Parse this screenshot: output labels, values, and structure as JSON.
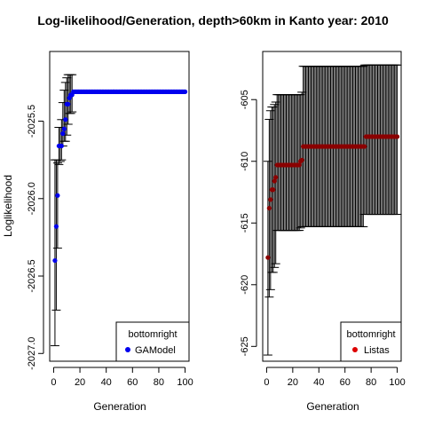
{
  "title": "Log-likelihood/Generation, depth>60km in Kanto year: 2010",
  "chart_data": [
    {
      "type": "scatter",
      "xlabel": "Generation",
      "ylabel": "Loglikelihood",
      "xlim": [
        -3,
        103
      ],
      "ylim": [
        -2027.05,
        -2025.05
      ],
      "xticks": [
        0,
        20,
        40,
        60,
        80,
        100
      ],
      "yticks": [
        -2027.0,
        -2026.5,
        -2026.0,
        -2025.5
      ],
      "ytick_labels": [
        "-2027.0",
        "-2026.5",
        "-2026.0",
        "-2025.5"
      ],
      "grid": false,
      "legend": {
        "title": "bottomright",
        "position": "bottom-right",
        "entries": [
          {
            "label": "GAModel",
            "color": "#0000ee"
          }
        ]
      },
      "series": [
        {
          "color": "#0000ee",
          "x": [
            1,
            2,
            3,
            4,
            5,
            6,
            7,
            8,
            9,
            10,
            11,
            12,
            13,
            14,
            15,
            16,
            17,
            18,
            19,
            20,
            21,
            22,
            23,
            24,
            25,
            26,
            27,
            28,
            29,
            30,
            31,
            32,
            33,
            34,
            35,
            36,
            37,
            38,
            39,
            40,
            41,
            42,
            43,
            44,
            45,
            46,
            47,
            48,
            49,
            50,
            51,
            52,
            53,
            54,
            55,
            56,
            57,
            58,
            59,
            60,
            61,
            62,
            63,
            64,
            65,
            66,
            67,
            68,
            69,
            70,
            71,
            72,
            73,
            74,
            75,
            76,
            77,
            78,
            79,
            80,
            81,
            82,
            83,
            84,
            85,
            86,
            87,
            88,
            89,
            90,
            91,
            92,
            93,
            94,
            95,
            96,
            97,
            98,
            99,
            100
          ],
          "y": [
            -2026.4,
            -2026.18,
            -2025.98,
            -2025.66,
            -2025.66,
            -2025.66,
            -2025.58,
            -2025.55,
            -2025.49,
            -2025.39,
            -2025.39,
            -2025.35,
            -2025.33,
            -2025.33,
            -2025.31,
            -2025.31,
            -2025.31,
            -2025.31,
            -2025.31,
            -2025.31,
            -2025.31,
            -2025.31,
            -2025.31,
            -2025.31,
            -2025.31,
            -2025.31,
            -2025.31,
            -2025.31,
            -2025.31,
            -2025.31,
            -2025.31,
            -2025.31,
            -2025.31,
            -2025.31,
            -2025.31,
            -2025.31,
            -2025.31,
            -2025.31,
            -2025.31,
            -2025.31,
            -2025.31,
            -2025.31,
            -2025.31,
            -2025.31,
            -2025.31,
            -2025.31,
            -2025.31,
            -2025.31,
            -2025.31,
            -2025.31,
            -2025.31,
            -2025.31,
            -2025.31,
            -2025.31,
            -2025.31,
            -2025.31,
            -2025.31,
            -2025.31,
            -2025.31,
            -2025.31,
            -2025.31,
            -2025.31,
            -2025.31,
            -2025.31,
            -2025.31,
            -2025.31,
            -2025.31,
            -2025.31,
            -2025.31,
            -2025.31,
            -2025.31,
            -2025.31,
            -2025.31,
            -2025.31,
            -2025.31,
            -2025.31,
            -2025.31,
            -2025.31,
            -2025.31,
            -2025.31,
            -2025.31,
            -2025.31,
            -2025.31,
            -2025.31,
            -2025.31,
            -2025.31,
            -2025.31,
            -2025.31,
            -2025.31,
            -2025.31,
            -2025.31,
            -2025.31,
            -2025.31,
            -2025.31,
            -2025.31,
            -2025.31,
            -2025.31,
            -2025.31,
            -2025.31,
            -2025.31
          ]
        }
      ],
      "errorbars": [
        {
          "x": 1,
          "lo": -2026.95,
          "hi": -2025.75
        },
        {
          "x": 2,
          "lo": -2026.72,
          "hi": -2025.75
        },
        {
          "x": 3,
          "lo": -2026.32,
          "hi": -2025.77
        },
        {
          "x": 4,
          "lo": -2025.78,
          "hi": -2025.54
        },
        {
          "x": 5,
          "lo": -2025.76,
          "hi": -2025.54
        },
        {
          "x": 6,
          "lo": -2025.75,
          "hi": -2025.49
        },
        {
          "x": 7,
          "lo": -2025.66,
          "hi": -2025.38
        },
        {
          "x": 8,
          "lo": -2025.63,
          "hi": -2025.3
        },
        {
          "x": 9,
          "lo": -2025.63,
          "hi": -2025.25
        },
        {
          "x": 10,
          "lo": -2025.59,
          "hi": -2025.22
        },
        {
          "x": 11,
          "lo": -2025.52,
          "hi": -2025.2
        },
        {
          "x": 12,
          "lo": -2025.45,
          "hi": -2025.2
        },
        {
          "x": 13,
          "lo": -2025.45,
          "hi": -2025.2
        },
        {
          "x": 14,
          "lo": -2025.44,
          "hi": -2025.2
        }
      ]
    },
    {
      "type": "scatter",
      "xlabel": "Generation",
      "ylabel": "",
      "xlim": [
        -3,
        103
      ],
      "ylim": [
        -626.2,
        -601.1
      ],
      "xticks": [
        0,
        20,
        40,
        60,
        80,
        100
      ],
      "yticks": [
        -625,
        -620,
        -615,
        -610,
        -605
      ],
      "ytick_labels": [
        "-625",
        "-620",
        "-615",
        "-610",
        "-605"
      ],
      "grid": false,
      "legend": {
        "title": "bottomright",
        "position": "bottom-right",
        "entries": [
          {
            "label": "Listas",
            "color": "#dd0000"
          }
        ]
      },
      "series": [
        {
          "color": "#8b0000",
          "x": [
            1,
            2,
            3,
            4,
            5,
            6,
            7,
            8,
            9,
            10,
            11,
            12,
            13,
            14,
            15,
            16,
            17,
            18,
            19,
            20,
            21,
            22,
            23,
            24,
            25,
            26,
            27,
            28,
            29,
            30,
            31,
            32,
            33,
            34,
            35,
            36,
            37,
            38,
            39,
            40,
            41,
            42,
            43,
            44,
            45,
            46,
            47,
            48,
            49,
            50,
            51,
            52,
            53,
            54,
            55,
            56,
            57,
            58,
            59,
            60,
            61,
            62,
            63,
            64,
            65,
            66,
            67,
            68,
            69,
            70,
            71,
            72,
            73,
            74,
            75,
            76,
            77,
            78,
            79,
            80,
            81,
            82,
            83,
            84,
            85,
            86,
            87,
            88,
            89,
            90,
            91,
            92,
            93,
            94,
            95,
            96,
            97,
            98,
            99,
            100
          ],
          "y": [
            -617.8,
            -613.8,
            -613.1,
            -612.3,
            -612.3,
            -611.6,
            -611.3,
            -610.3,
            -610.3,
            -610.3,
            -610.3,
            -610.3,
            -610.3,
            -610.3,
            -610.3,
            -610.3,
            -610.3,
            -610.3,
            -610.3,
            -610.3,
            -610.3,
            -610.3,
            -610.3,
            -610.3,
            -610.3,
            -610.0,
            -609.9,
            -608.8,
            -608.8,
            -608.8,
            -608.8,
            -608.8,
            -608.8,
            -608.8,
            -608.8,
            -608.8,
            -608.8,
            -608.8,
            -608.8,
            -608.8,
            -608.8,
            -608.8,
            -608.8,
            -608.8,
            -608.8,
            -608.8,
            -608.8,
            -608.8,
            -608.8,
            -608.8,
            -608.8,
            -608.8,
            -608.8,
            -608.8,
            -608.8,
            -608.8,
            -608.8,
            -608.8,
            -608.8,
            -608.8,
            -608.8,
            -608.8,
            -608.8,
            -608.8,
            -608.8,
            -608.8,
            -608.8,
            -608.8,
            -608.8,
            -608.8,
            -608.8,
            -608.8,
            -608.8,
            -608.8,
            -608.8,
            -608.0,
            -608.0,
            -608.0,
            -608.0,
            -608.0,
            -608.0,
            -608.0,
            -608.0,
            -608.0,
            -608.0,
            -608.0,
            -608.0,
            -608.0,
            -608.0,
            -608.0,
            -608.0,
            -608.0,
            -608.0,
            -608.0,
            -608.0,
            -608.0,
            -608.0,
            -608.0,
            -608.0,
            -608.0
          ]
        }
      ],
      "errorbar_segments": [
        {
          "x0": 1,
          "x1": 1,
          "lo": -625.7,
          "hi": -610.0
        },
        {
          "x0": 2,
          "x1": 2,
          "lo": -621.0,
          "hi": -606.6
        },
        {
          "x0": 3,
          "x1": 3,
          "lo": -620.4,
          "hi": -605.9
        },
        {
          "x0": 4,
          "x1": 4,
          "lo": -619.0,
          "hi": -605.6
        },
        {
          "x0": 5,
          "x1": 5,
          "lo": -619.0,
          "hi": -605.6
        },
        {
          "x0": 6,
          "x1": 6,
          "lo": -618.6,
          "hi": -605.4
        },
        {
          "x0": 7,
          "x1": 7,
          "lo": -618.3,
          "hi": -605.2
        },
        {
          "x0": 8,
          "x1": 25,
          "lo": -615.6,
          "hi": -604.6
        },
        {
          "x0": 26,
          "x1": 26,
          "lo": -615.4,
          "hi": -604.6
        },
        {
          "x0": 27,
          "x1": 27,
          "lo": -615.3,
          "hi": -604.4
        },
        {
          "x0": 28,
          "x1": 74,
          "lo": -615.3,
          "hi": -602.3
        },
        {
          "x0": 75,
          "x1": 100,
          "lo": -614.3,
          "hi": -602.2
        }
      ]
    }
  ]
}
